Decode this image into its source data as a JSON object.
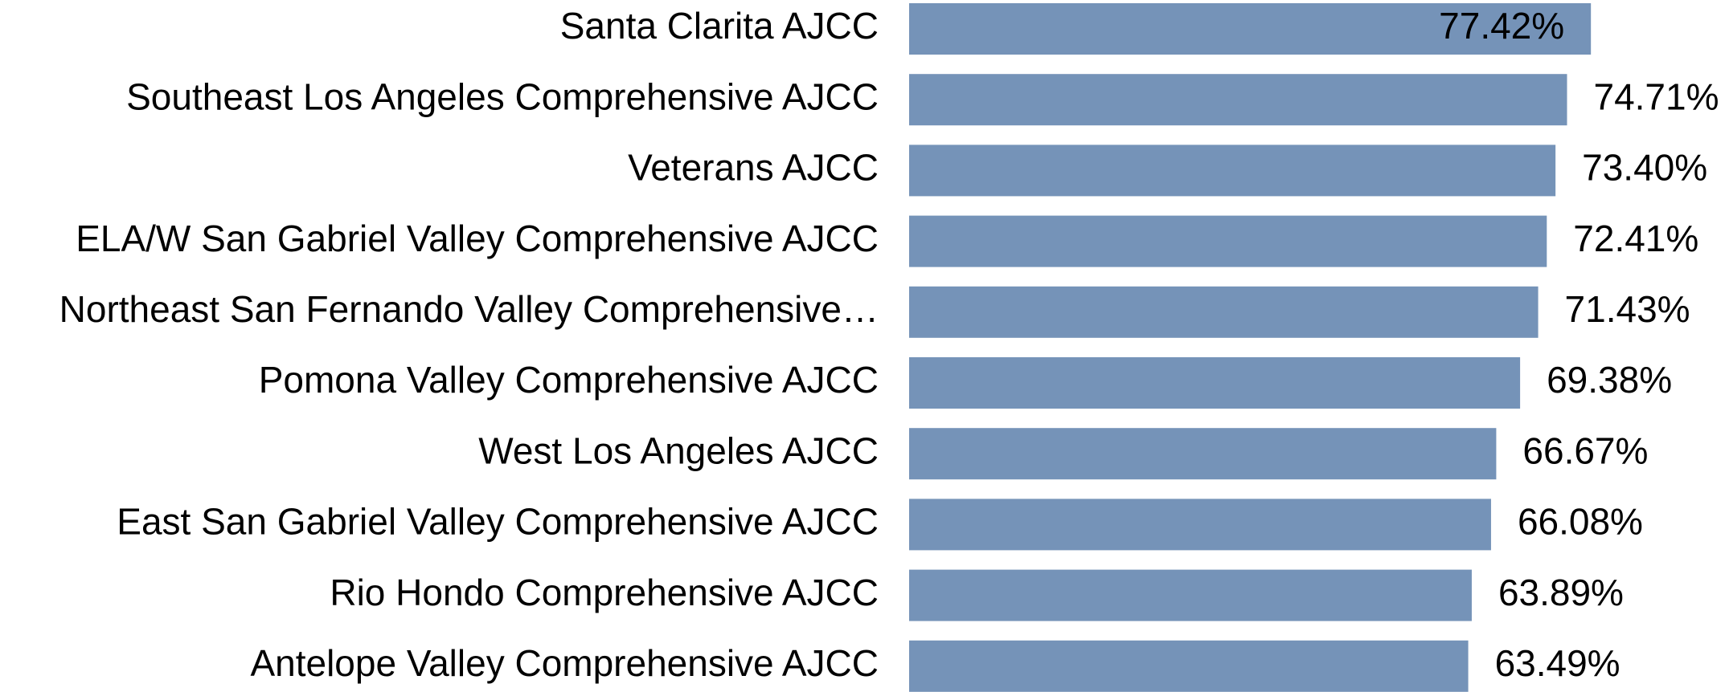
{
  "chart_data": {
    "type": "hbar",
    "categories": [
      "Santa Clarita AJCC",
      "Southeast Los Angeles Comprehensive AJCC",
      "Veterans AJCC",
      "ELA/W San Gabriel Valley Comprehensive AJCC",
      "Northeast San Fernando Valley Comprehensive…",
      "Pomona Valley Comprehensive AJCC",
      "West Los Angeles AJCC",
      "East San Gabriel Valley Comprehensive AJCC",
      "Rio Hondo Comprehensive AJCC",
      "Antelope Valley Comprehensive AJCC"
    ],
    "values": [
      77.42,
      74.71,
      73.4,
      72.41,
      71.43,
      69.38,
      66.67,
      66.08,
      63.89,
      63.49
    ],
    "value_labels": [
      "77.42%",
      "74.71%",
      "73.40%",
      "72.41%",
      "71.43%",
      "69.38%",
      "66.67%",
      "66.08%",
      "63.89%",
      "63.49%"
    ],
    "color": "#7593b8",
    "xlim": [
      0,
      90
    ]
  }
}
